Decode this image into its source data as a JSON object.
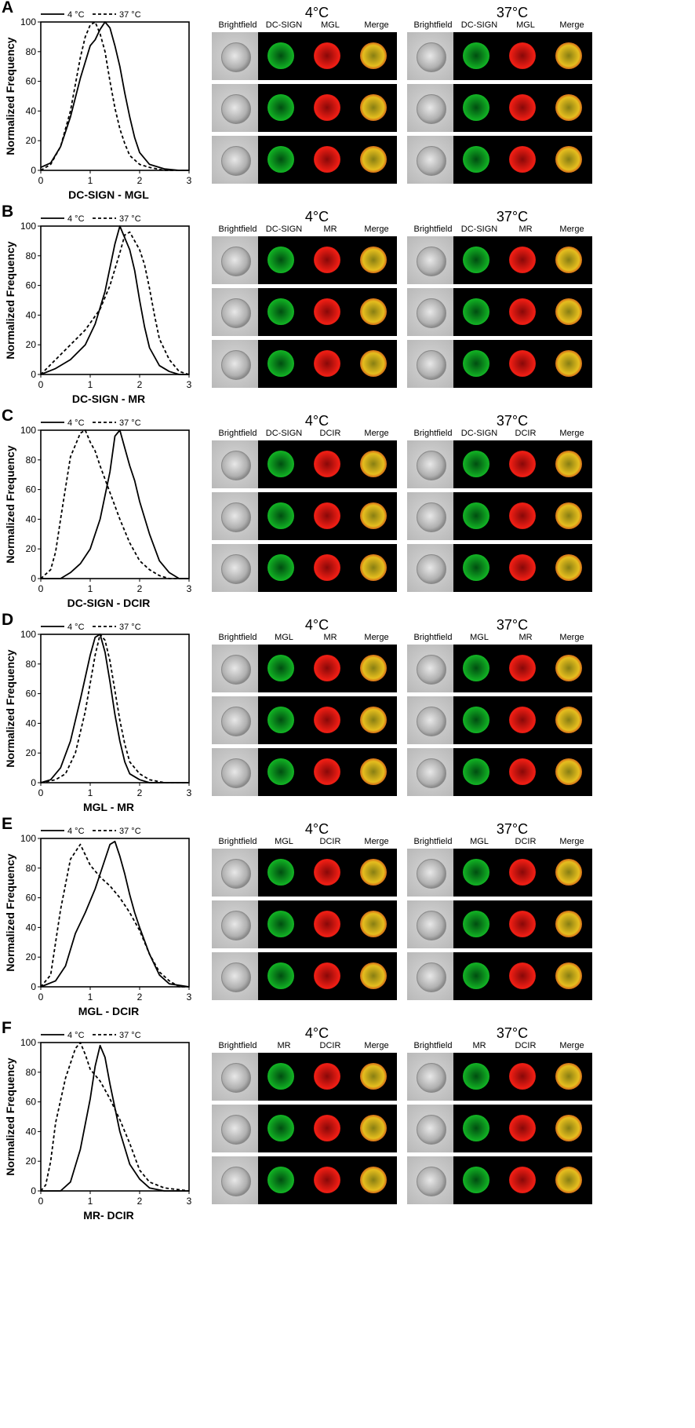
{
  "figure": {
    "legend": {
      "solid": "4 °C",
      "dashed": "37 °C"
    },
    "cond_4": "4°C",
    "cond_37": "37°C",
    "brightfield_label": "Brightfield",
    "merge_label": "Merge"
  },
  "chart_data": [
    {
      "letter": "A",
      "type": "line",
      "xlabel": "DC-SIGN - MGL",
      "ylabel": "Normalized Frequency",
      "xlim": [
        0,
        3
      ],
      "ylim": [
        0,
        100
      ],
      "xticks": [
        "0",
        "1",
        "2",
        "3"
      ],
      "yticks": [
        "0",
        "20",
        "40",
        "60",
        "80",
        "100"
      ],
      "legend_position": "top-left",
      "channels": [
        "DC-SIGN",
        "MGL"
      ],
      "series": [
        {
          "name": "4 °C",
          "style": "solid",
          "x": [
            0.0,
            0.2,
            0.4,
            0.6,
            0.8,
            1.0,
            1.1,
            1.2,
            1.3,
            1.4,
            1.5,
            1.6,
            1.7,
            1.8,
            1.9,
            2.0,
            2.2,
            2.5,
            2.8,
            3.0
          ],
          "y": [
            2,
            5,
            16,
            36,
            62,
            84,
            88,
            95,
            100,
            96,
            84,
            70,
            52,
            36,
            22,
            12,
            4,
            1,
            0,
            0
          ]
        },
        {
          "name": "37 °C",
          "style": "dashed",
          "x": [
            0.0,
            0.2,
            0.4,
            0.6,
            0.8,
            0.9,
            1.0,
            1.1,
            1.2,
            1.3,
            1.4,
            1.5,
            1.6,
            1.7,
            1.8,
            2.0,
            2.2,
            2.5,
            3.0
          ],
          "y": [
            0,
            4,
            16,
            40,
            76,
            90,
            98,
            100,
            92,
            80,
            60,
            42,
            28,
            18,
            10,
            4,
            2,
            0,
            0
          ]
        }
      ]
    },
    {
      "letter": "B",
      "type": "line",
      "xlabel": "DC-SIGN - MR",
      "ylabel": "Normalized Frequency",
      "xlim": [
        0,
        3
      ],
      "ylim": [
        0,
        100
      ],
      "xticks": [
        "0",
        "1",
        "2",
        "3"
      ],
      "yticks": [
        "0",
        "20",
        "40",
        "60",
        "80",
        "100"
      ],
      "legend_position": "top-left",
      "channels": [
        "DC-SIGN",
        "MR"
      ],
      "series": [
        {
          "name": "4 °C",
          "style": "solid",
          "x": [
            0.0,
            0.3,
            0.6,
            0.9,
            1.1,
            1.3,
            1.5,
            1.6,
            1.7,
            1.8,
            1.9,
            2.0,
            2.1,
            2.2,
            2.4,
            2.6,
            2.8,
            3.0
          ],
          "y": [
            0,
            4,
            10,
            20,
            34,
            56,
            88,
            100,
            92,
            84,
            70,
            50,
            32,
            18,
            6,
            2,
            0,
            0
          ]
        },
        {
          "name": "37 °C",
          "style": "dashed",
          "x": [
            0.0,
            0.3,
            0.6,
            0.9,
            1.2,
            1.4,
            1.6,
            1.7,
            1.8,
            1.9,
            2.0,
            2.1,
            2.2,
            2.3,
            2.4,
            2.6,
            2.8,
            3.0
          ],
          "y": [
            0,
            10,
            20,
            30,
            44,
            60,
            82,
            94,
            96,
            90,
            84,
            74,
            58,
            40,
            24,
            10,
            2,
            0
          ]
        }
      ]
    },
    {
      "letter": "C",
      "type": "line",
      "xlabel": "DC-SIGN - DCIR",
      "ylabel": "Normalized Frequency",
      "xlim": [
        0,
        3
      ],
      "ylim": [
        0,
        100
      ],
      "xticks": [
        "0",
        "1",
        "2",
        "3"
      ],
      "yticks": [
        "0",
        "20",
        "40",
        "60",
        "80",
        "100"
      ],
      "legend_position": "top-left",
      "channels": [
        "DC-SIGN",
        "DCIR"
      ],
      "series": [
        {
          "name": "4 °C",
          "style": "solid",
          "x": [
            0.0,
            0.4,
            0.6,
            0.8,
            1.0,
            1.2,
            1.4,
            1.5,
            1.6,
            1.7,
            1.8,
            1.9,
            2.0,
            2.2,
            2.4,
            2.6,
            2.8,
            3.0
          ],
          "y": [
            0,
            0,
            4,
            10,
            20,
            40,
            72,
            96,
            100,
            88,
            76,
            66,
            52,
            30,
            12,
            4,
            0,
            0
          ]
        },
        {
          "name": "37 °C",
          "style": "dashed",
          "x": [
            0.0,
            0.2,
            0.3,
            0.4,
            0.6,
            0.8,
            0.9,
            1.0,
            1.1,
            1.2,
            1.4,
            1.6,
            1.8,
            2.0,
            2.2,
            2.4,
            2.6,
            3.0
          ],
          "y": [
            0,
            6,
            18,
            40,
            82,
            98,
            100,
            92,
            86,
            76,
            58,
            40,
            24,
            12,
            6,
            2,
            0,
            0
          ]
        }
      ]
    },
    {
      "letter": "D",
      "type": "line",
      "xlabel": "MGL - MR",
      "ylabel": "Normalized Frequency",
      "xlim": [
        0,
        3
      ],
      "ylim": [
        0,
        100
      ],
      "xticks": [
        "0",
        "1",
        "2",
        "3"
      ],
      "yticks": [
        "0",
        "20",
        "40",
        "60",
        "80",
        "100"
      ],
      "legend_position": "top-left",
      "channels": [
        "MGL",
        "MR"
      ],
      "series": [
        {
          "name": "4 °C",
          "style": "solid",
          "x": [
            0.0,
            0.2,
            0.4,
            0.6,
            0.8,
            1.0,
            1.1,
            1.2,
            1.3,
            1.4,
            1.5,
            1.6,
            1.7,
            1.8,
            2.0,
            2.2,
            3.0
          ],
          "y": [
            0,
            2,
            10,
            28,
            56,
            86,
            98,
            100,
            88,
            68,
            46,
            28,
            14,
            6,
            2,
            0,
            0
          ]
        },
        {
          "name": "37 °C",
          "style": "dashed",
          "x": [
            0.0,
            0.3,
            0.5,
            0.7,
            0.9,
            1.1,
            1.2,
            1.3,
            1.4,
            1.5,
            1.6,
            1.7,
            1.8,
            2.0,
            2.2,
            2.5,
            3.0
          ],
          "y": [
            0,
            2,
            6,
            20,
            48,
            86,
            100,
            96,
            82,
            62,
            42,
            26,
            14,
            6,
            2,
            0,
            0
          ]
        }
      ]
    },
    {
      "letter": "E",
      "type": "line",
      "xlabel": "MGL - DCIR",
      "ylabel": "Normalized Frequency",
      "xlim": [
        0,
        3
      ],
      "ylim": [
        0,
        100
      ],
      "xticks": [
        "0",
        "1",
        "2",
        "3"
      ],
      "yticks": [
        "0",
        "20",
        "40",
        "60",
        "80",
        "100"
      ],
      "legend_position": "top-left",
      "channels": [
        "MGL",
        "DCIR"
      ],
      "series": [
        {
          "name": "4 °C",
          "style": "solid",
          "x": [
            0.0,
            0.3,
            0.5,
            0.7,
            0.9,
            1.1,
            1.3,
            1.4,
            1.5,
            1.6,
            1.7,
            1.8,
            1.9,
            2.0,
            2.2,
            2.4,
            2.6,
            3.0
          ],
          "y": [
            0,
            4,
            14,
            36,
            50,
            66,
            86,
            96,
            98,
            88,
            76,
            62,
            50,
            40,
            22,
            8,
            2,
            0
          ]
        },
        {
          "name": "37 °C",
          "style": "dashed",
          "x": [
            0.0,
            0.2,
            0.4,
            0.6,
            0.8,
            1.0,
            1.2,
            1.4,
            1.6,
            1.8,
            2.0,
            2.2,
            2.4,
            2.6,
            2.8,
            3.0
          ],
          "y": [
            0,
            8,
            52,
            86,
            96,
            82,
            74,
            68,
            60,
            50,
            38,
            22,
            10,
            4,
            0,
            0
          ]
        }
      ]
    },
    {
      "letter": "F",
      "type": "line",
      "xlabel": "MR- DCIR",
      "ylabel": "Normalized Frequency",
      "xlim": [
        0,
        3
      ],
      "ylim": [
        0,
        100
      ],
      "xticks": [
        "0",
        "1",
        "2",
        "3"
      ],
      "yticks": [
        "0",
        "20",
        "40",
        "60",
        "80",
        "100"
      ],
      "legend_position": "top-left",
      "channels": [
        "MR",
        "DCIR"
      ],
      "series": [
        {
          "name": "4 °C",
          "style": "solid",
          "x": [
            0.0,
            0.4,
            0.6,
            0.8,
            1.0,
            1.1,
            1.2,
            1.3,
            1.4,
            1.5,
            1.6,
            1.8,
            2.0,
            2.2,
            2.5,
            3.0
          ],
          "y": [
            0,
            0,
            6,
            28,
            62,
            84,
            98,
            90,
            72,
            56,
            40,
            18,
            8,
            2,
            0,
            0
          ]
        },
        {
          "name": "37 °C",
          "style": "dashed",
          "x": [
            0.0,
            0.1,
            0.2,
            0.3,
            0.5,
            0.7,
            0.8,
            0.9,
            1.0,
            1.2,
            1.4,
            1.6,
            1.8,
            2.0,
            2.2,
            2.5,
            3.0
          ],
          "y": [
            0,
            4,
            20,
            46,
            76,
            96,
            100,
            92,
            82,
            74,
            62,
            48,
            32,
            14,
            6,
            2,
            0
          ]
        }
      ]
    }
  ]
}
